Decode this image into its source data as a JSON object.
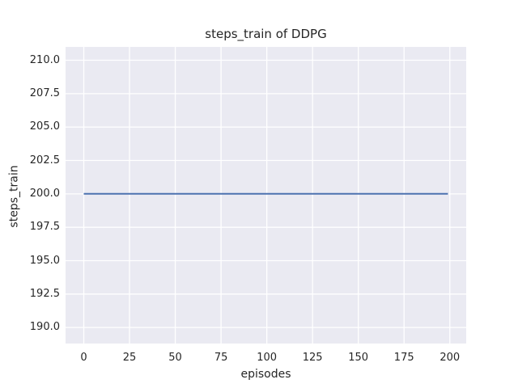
{
  "chart_data": {
    "type": "line",
    "title": "steps_train of DDPG",
    "xlabel": "episodes",
    "ylabel": "steps_train",
    "x_ticks": [
      {
        "value": 0,
        "label": "0"
      },
      {
        "value": 25,
        "label": "25"
      },
      {
        "value": 50,
        "label": "50"
      },
      {
        "value": 75,
        "label": "75"
      },
      {
        "value": 100,
        "label": "100"
      },
      {
        "value": 125,
        "label": "125"
      },
      {
        "value": 150,
        "label": "150"
      },
      {
        "value": 175,
        "label": "175"
      },
      {
        "value": 200,
        "label": "200"
      }
    ],
    "y_ticks": [
      {
        "value": 190.0,
        "label": "190.0"
      },
      {
        "value": 192.5,
        "label": "192.5"
      },
      {
        "value": 195.0,
        "label": "195.0"
      },
      {
        "value": 197.5,
        "label": "197.5"
      },
      {
        "value": 200.0,
        "label": "200.0"
      },
      {
        "value": 202.5,
        "label": "202.5"
      },
      {
        "value": 205.0,
        "label": "205.0"
      },
      {
        "value": 207.5,
        "label": "207.5"
      },
      {
        "value": 210.0,
        "label": "210.0"
      }
    ],
    "xlim": [
      -9.95,
      208.95
    ],
    "ylim": [
      188.8,
      211.0
    ],
    "grid": true,
    "legend": "none",
    "colors": {
      "plot_background": "#eaeaf2",
      "grid_line": "#ffffff",
      "text": "#262626",
      "series_line": "#4c72b0"
    },
    "series": [
      {
        "name": "steps_train",
        "color": "#4c72b0",
        "points": [
          [
            0,
            200
          ],
          [
            199,
            200
          ]
        ]
      }
    ]
  }
}
